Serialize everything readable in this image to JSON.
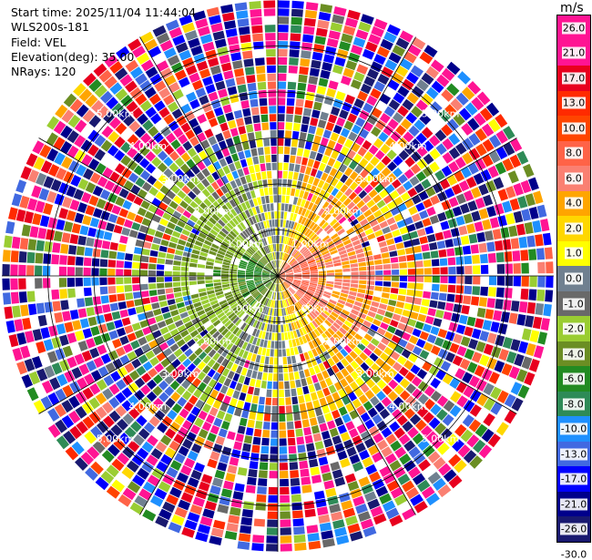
{
  "info": {
    "start_time": "Start time: 2025/11/04 11:44:04",
    "instrument": "WLS200s-181",
    "field": "Field: VEL",
    "elevation": "Elevation(deg): 35.00",
    "nrays": "NRays: 120"
  },
  "colorbar": {
    "unit": "m/s",
    "ticks": [
      "26.0",
      "21.0",
      "17.0",
      "13.0",
      "10.0",
      "8.0",
      "6.0",
      "4.0",
      "2.0",
      "1.0",
      "0.0",
      "-1.0",
      "-2.0",
      "-4.0",
      "-6.0",
      "-8.0",
      "-10.0",
      "-13.0",
      "-17.0",
      "-21.0",
      "-26.0",
      "-30.0"
    ],
    "colors": [
      "#ff1493",
      "#ff1493",
      "#e8001e",
      "#ff2a00",
      "#ff4500",
      "#ff6347",
      "#fa8072",
      "#ffa500",
      "#ffd700",
      "#ffff00",
      "#708090",
      "#696969",
      "#9acd32",
      "#6b8e23",
      "#228b22",
      "#2e8b57",
      "#1e90ff",
      "#4169e1",
      "#0000ff",
      "#00008b",
      "#191970"
    ]
  },
  "chart_data": {
    "type": "heatmap",
    "projection": "polar (PPI)",
    "field": "VEL",
    "units": "m/s",
    "nrays": 120,
    "elevation_deg": 35.0,
    "range_rings_km": [
      1.0,
      2.0,
      3.0,
      4.0,
      5.0
    ],
    "range_ring_labels": [
      "1.00km",
      "2.00km",
      "3.00km",
      "4.00km",
      "5.00km"
    ],
    "max_range_km": 6.0,
    "color_scale_min": -30.0,
    "color_scale_max": 26.0,
    "approx_field_description": {
      "inner_west": "negative velocities (-1 to -8 m/s) within ~1.5 km",
      "inner_east": "positive velocities (1 to 10 m/s) within ~1.5 km",
      "outer": "noisy random velocities beyond ~2.5 km"
    }
  }
}
